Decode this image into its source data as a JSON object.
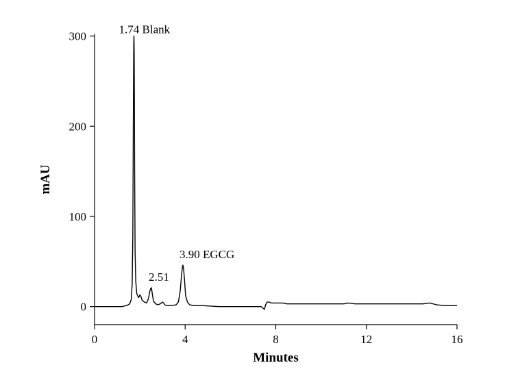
{
  "chart_data": {
    "type": "line",
    "title": "",
    "xlabel": "Minutes",
    "ylabel": "mAU",
    "xlim": [
      0,
      16
    ],
    "ylim": [
      -20,
      302
    ],
    "x_ticks": [
      0,
      4,
      8,
      12,
      16
    ],
    "y_ticks": [
      0,
      100,
      200,
      300
    ],
    "grid": false,
    "legend": "none",
    "line_color": "#000000",
    "series": [
      {
        "x": [
          0,
          1.2,
          1.4,
          1.55,
          1.62,
          1.66,
          1.69,
          1.71,
          1.73,
          1.74,
          1.75,
          1.77,
          1.79,
          1.82,
          1.86,
          1.9,
          1.95,
          2.0,
          2.05,
          2.1,
          2.2,
          2.3,
          2.38,
          2.44,
          2.48,
          2.51,
          2.55,
          2.6,
          2.7,
          2.8,
          2.9,
          3.0,
          3.05,
          3.1,
          3.2,
          3.4,
          3.6,
          3.7,
          3.78,
          3.84,
          3.88,
          3.9,
          3.93,
          3.97,
          4.02,
          4.1,
          4.2,
          4.4,
          4.8,
          5.5,
          6.5,
          7.2,
          7.35,
          7.45,
          7.5,
          7.55,
          7.62,
          7.7,
          7.8,
          8.0,
          8.3,
          8.5,
          9.0,
          10.0,
          11.0,
          11.2,
          11.5,
          12.0,
          13.0,
          14.0,
          14.5,
          14.8,
          15.1,
          15.5,
          16.0
        ],
        "y": [
          0,
          0,
          1,
          3,
          8,
          25,
          80,
          200,
          290,
          300,
          280,
          150,
          60,
          28,
          15,
          12,
          10,
          13,
          11,
          7,
          5,
          4,
          9,
          17,
          20,
          21,
          14,
          6,
          3,
          2,
          3,
          5,
          4,
          2,
          1,
          1,
          2,
          5,
          17,
          35,
          44,
          46,
          42,
          30,
          12,
          5,
          2,
          1,
          1,
          0,
          0,
          0,
          0,
          -2,
          -3,
          2,
          5,
          5,
          4,
          4,
          4,
          3,
          3,
          3,
          3,
          4,
          3,
          3,
          3,
          3,
          3,
          4,
          2,
          1,
          1
        ]
      }
    ],
    "annotations": [
      {
        "text": "1.74 Blank",
        "x": 1.74,
        "y": 300
      },
      {
        "text": "2.51",
        "x": 2.51,
        "y": 21
      },
      {
        "text": "3.90 EGCG",
        "x": 3.9,
        "y": 46
      }
    ]
  }
}
